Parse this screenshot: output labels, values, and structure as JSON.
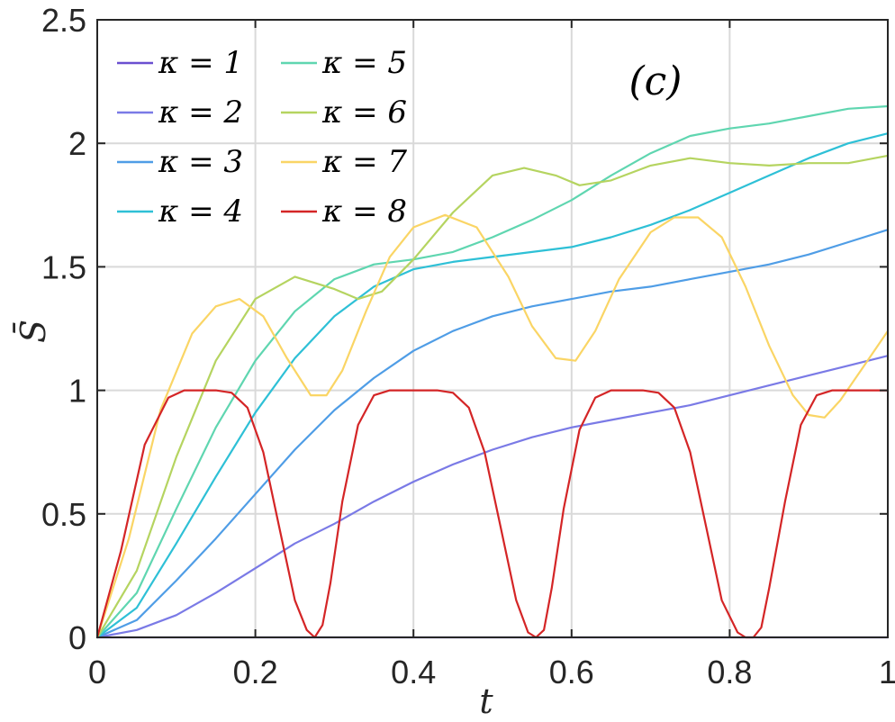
{
  "chart_data": {
    "type": "line",
    "annotation": "(c)",
    "xlabel": "t",
    "ylabel": "S̄",
    "xlim": [
      0,
      1
    ],
    "ylim": [
      0,
      2.5
    ],
    "xticks": [
      "0",
      "0.2",
      "0.4",
      "0.6",
      "0.8",
      "1"
    ],
    "yticks": [
      "0",
      "0.5",
      "1",
      "1.5",
      "2",
      "2.5"
    ],
    "grid": true,
    "legend_placement": "top-left",
    "series": [
      {
        "name": "κ = 1",
        "color": "#6a4fd0",
        "x": [
          0,
          1
        ],
        "y": [
          0,
          0
        ]
      },
      {
        "name": "κ = 2",
        "color": "#7a7ae6",
        "x": [
          0,
          0.05,
          0.1,
          0.15,
          0.2,
          0.25,
          0.3,
          0.35,
          0.4,
          0.45,
          0.5,
          0.55,
          0.6,
          0.65,
          0.7,
          0.75,
          0.8,
          0.85,
          0.9,
          0.95,
          1
        ],
        "y": [
          0,
          0.03,
          0.09,
          0.18,
          0.28,
          0.38,
          0.46,
          0.55,
          0.63,
          0.7,
          0.76,
          0.81,
          0.85,
          0.88,
          0.91,
          0.94,
          0.98,
          1.02,
          1.06,
          1.1,
          1.14
        ]
      },
      {
        "name": "κ = 3",
        "color": "#4f9de6",
        "x": [
          0,
          0.05,
          0.1,
          0.15,
          0.2,
          0.25,
          0.3,
          0.35,
          0.4,
          0.45,
          0.5,
          0.55,
          0.6,
          0.65,
          0.7,
          0.75,
          0.8,
          0.85,
          0.9,
          0.95,
          1
        ],
        "y": [
          0,
          0.07,
          0.23,
          0.4,
          0.58,
          0.76,
          0.92,
          1.05,
          1.16,
          1.24,
          1.3,
          1.34,
          1.37,
          1.4,
          1.42,
          1.45,
          1.48,
          1.51,
          1.55,
          1.6,
          1.65
        ]
      },
      {
        "name": "κ = 4",
        "color": "#2ec0d6",
        "x": [
          0,
          0.05,
          0.1,
          0.15,
          0.2,
          0.25,
          0.3,
          0.35,
          0.4,
          0.45,
          0.5,
          0.55,
          0.6,
          0.65,
          0.7,
          0.75,
          0.8,
          0.85,
          0.9,
          0.95,
          1
        ],
        "y": [
          0,
          0.12,
          0.38,
          0.65,
          0.91,
          1.13,
          1.3,
          1.42,
          1.49,
          1.52,
          1.54,
          1.56,
          1.58,
          1.62,
          1.67,
          1.73,
          1.8,
          1.87,
          1.94,
          2.0,
          2.04
        ]
      },
      {
        "name": "κ = 5",
        "color": "#5fd6b0",
        "x": [
          0,
          0.05,
          0.1,
          0.15,
          0.2,
          0.25,
          0.3,
          0.35,
          0.4,
          0.45,
          0.5,
          0.55,
          0.6,
          0.65,
          0.7,
          0.75,
          0.8,
          0.85,
          0.9,
          0.95,
          1
        ],
        "y": [
          0,
          0.18,
          0.52,
          0.85,
          1.12,
          1.32,
          1.45,
          1.51,
          1.53,
          1.56,
          1.62,
          1.69,
          1.77,
          1.87,
          1.96,
          2.03,
          2.06,
          2.08,
          2.11,
          2.14,
          2.15
        ]
      },
      {
        "name": "κ = 6",
        "color": "#b5d460",
        "x": [
          0,
          0.05,
          0.1,
          0.15,
          0.2,
          0.25,
          0.3,
          0.33,
          0.36,
          0.4,
          0.45,
          0.5,
          0.54,
          0.58,
          0.61,
          0.65,
          0.7,
          0.75,
          0.8,
          0.85,
          0.9,
          0.95,
          1
        ],
        "y": [
          0,
          0.27,
          0.73,
          1.12,
          1.37,
          1.46,
          1.41,
          1.37,
          1.4,
          1.53,
          1.72,
          1.87,
          1.9,
          1.87,
          1.83,
          1.85,
          1.91,
          1.94,
          1.92,
          1.91,
          1.92,
          1.92,
          1.95
        ]
      },
      {
        "name": "κ = 7",
        "color": "#fad565",
        "x": [
          0,
          0.04,
          0.08,
          0.12,
          0.15,
          0.18,
          0.21,
          0.24,
          0.27,
          0.29,
          0.31,
          0.34,
          0.37,
          0.4,
          0.44,
          0.48,
          0.52,
          0.55,
          0.58,
          0.605,
          0.63,
          0.66,
          0.7,
          0.73,
          0.76,
          0.79,
          0.82,
          0.85,
          0.88,
          0.9,
          0.92,
          0.94,
          0.97,
          1
        ],
        "y": [
          0,
          0.4,
          0.92,
          1.23,
          1.34,
          1.37,
          1.3,
          1.13,
          0.98,
          0.98,
          1.08,
          1.32,
          1.54,
          1.66,
          1.71,
          1.66,
          1.46,
          1.26,
          1.13,
          1.12,
          1.24,
          1.45,
          1.64,
          1.7,
          1.7,
          1.62,
          1.42,
          1.18,
          0.98,
          0.9,
          0.89,
          0.96,
          1.1,
          1.24
        ]
      },
      {
        "name": "κ = 8",
        "color": "#d42526",
        "x": [
          0,
          0.03,
          0.06,
          0.09,
          0.11,
          0.13,
          0.15,
          0.17,
          0.19,
          0.21,
          0.23,
          0.25,
          0.265,
          0.275,
          0.285,
          0.295,
          0.31,
          0.33,
          0.35,
          0.37,
          0.39,
          0.41,
          0.43,
          0.45,
          0.47,
          0.49,
          0.51,
          0.53,
          0.545,
          0.555,
          0.565,
          0.575,
          0.59,
          0.61,
          0.63,
          0.65,
          0.67,
          0.69,
          0.71,
          0.73,
          0.75,
          0.77,
          0.79,
          0.81,
          0.82,
          0.83,
          0.84,
          0.85,
          0.87,
          0.89,
          0.91,
          0.93,
          0.95,
          0.97,
          1
        ],
        "y": [
          0,
          0.35,
          0.78,
          0.97,
          1.0,
          1.0,
          1.0,
          0.99,
          0.93,
          0.75,
          0.45,
          0.15,
          0.03,
          0.0,
          0.05,
          0.22,
          0.55,
          0.86,
          0.98,
          1.0,
          1.0,
          1.0,
          1.0,
          0.99,
          0.93,
          0.75,
          0.45,
          0.15,
          0.02,
          0.0,
          0.03,
          0.2,
          0.52,
          0.84,
          0.97,
          1.0,
          1.0,
          1.0,
          0.99,
          0.93,
          0.75,
          0.45,
          0.15,
          0.02,
          0.0,
          0.0,
          0.04,
          0.2,
          0.55,
          0.86,
          0.98,
          1.0,
          1.0,
          1.0,
          1.0
        ]
      }
    ]
  }
}
